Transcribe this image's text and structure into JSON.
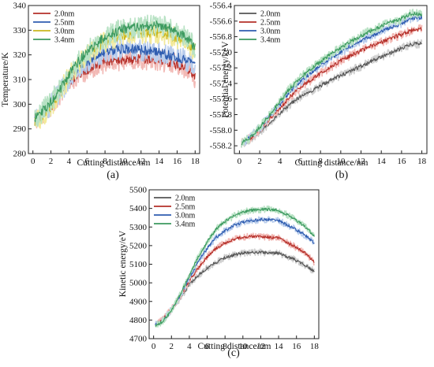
{
  "chart_data": [
    {
      "panel_label": "(a)",
      "type": "line",
      "xlabel": "Cutting distance/nm",
      "ylabel": "Temperature/K",
      "xlim": [
        -0.5,
        18.5
      ],
      "ylim": [
        280,
        340
      ],
      "xticks": [
        0,
        2,
        4,
        6,
        8,
        10,
        12,
        14,
        16,
        18
      ],
      "yticks": [
        280,
        290,
        300,
        310,
        320,
        330,
        340
      ],
      "legend_position": "top-left",
      "grid": false,
      "noise": 3.5,
      "series": [
        {
          "name": "2.0nm",
          "color": "#b5302a",
          "band": "#f2b9b5",
          "x": [
            0.2,
            1,
            2,
            3,
            4,
            5,
            6,
            7,
            8,
            9,
            10,
            11,
            12,
            13,
            14,
            15,
            16,
            17,
            18
          ],
          "y": [
            294,
            296,
            299,
            304,
            309,
            312,
            314,
            316,
            317,
            317.5,
            318,
            318,
            318.5,
            318,
            318,
            317,
            316,
            315,
            311
          ]
        },
        {
          "name": "2.5nm",
          "color": "#2f5db0",
          "band": "#b9cdec",
          "x": [
            0.2,
            1,
            2,
            3,
            4,
            5,
            6,
            7,
            8,
            9,
            10,
            11,
            12,
            13,
            14,
            15,
            16,
            17,
            18
          ],
          "y": [
            294,
            296,
            300,
            305,
            310,
            314,
            317,
            319.5,
            321,
            322,
            322.5,
            322.5,
            322,
            321.5,
            321,
            320,
            319,
            318,
            315
          ]
        },
        {
          "name": "3.0nm",
          "color": "#c9b71e",
          "band": "#f3ea9a",
          "x": [
            0.2,
            1,
            2,
            3,
            4,
            5,
            6,
            7,
            8,
            9,
            10,
            11,
            12,
            13,
            14,
            15,
            16,
            17,
            18
          ],
          "y": [
            293,
            295,
            299,
            305,
            311,
            316,
            320,
            323,
            325,
            327,
            328,
            328.5,
            329,
            329,
            329,
            328,
            327,
            325,
            321
          ]
        },
        {
          "name": "3.4nm",
          "color": "#3c9a5f",
          "band": "#b8e2c4",
          "x": [
            0.2,
            1,
            2,
            3,
            4,
            5,
            6,
            7,
            8,
            9,
            10,
            11,
            12,
            13,
            14,
            15,
            16,
            17,
            18
          ],
          "y": [
            294,
            297,
            301,
            306,
            312,
            317,
            321,
            324.5,
            327,
            329,
            330.5,
            331,
            331.5,
            332,
            332,
            331,
            329,
            327,
            323
          ]
        }
      ]
    },
    {
      "panel_label": "(b)",
      "type": "line",
      "xlabel": "Cutting distance/nm",
      "ylabel": "Potential energy/keV",
      "xlim": [
        -0.5,
        18.5
      ],
      "ylim": [
        -558.3,
        -556.4
      ],
      "xticks": [
        0,
        2,
        4,
        6,
        8,
        10,
        12,
        14,
        16,
        18
      ],
      "yticks": [
        -558.2,
        -558.0,
        -557.8,
        -557.6,
        -557.4,
        -557.2,
        -557.0,
        -556.8,
        -556.6,
        -556.4
      ],
      "ytick_labels": [
        "-558.2",
        "-558.0",
        "-557.8",
        "-557.6",
        "-557.4",
        "-557.2",
        "-557.0",
        "-556.8",
        "-556.6",
        "-556.4"
      ],
      "legend_position": "top-left",
      "grid": false,
      "noise": 0.045,
      "series": [
        {
          "name": "2.0nm",
          "color": "#555555",
          "band": "#cfcfcf",
          "x": [
            0.2,
            1,
            2,
            3,
            4,
            5,
            6,
            7,
            8,
            9,
            10,
            11,
            12,
            13,
            14,
            15,
            16,
            17,
            18
          ],
          "y": [
            -558.17,
            -558.13,
            -558.02,
            -557.9,
            -557.78,
            -557.67,
            -557.57,
            -557.5,
            -557.43,
            -557.36,
            -557.3,
            -557.24,
            -557.18,
            -557.12,
            -557.06,
            -557.0,
            -556.95,
            -556.9,
            -556.88
          ]
        },
        {
          "name": "2.5nm",
          "color": "#b5302a",
          "band": "#f2b9b5",
          "x": [
            0.2,
            1,
            2,
            3,
            4,
            5,
            6,
            7,
            8,
            9,
            10,
            11,
            12,
            13,
            14,
            15,
            16,
            17,
            18
          ],
          "y": [
            -558.16,
            -558.11,
            -557.99,
            -557.85,
            -557.72,
            -557.57,
            -557.45,
            -557.36,
            -557.27,
            -557.19,
            -557.11,
            -557.04,
            -556.98,
            -556.92,
            -556.87,
            -556.82,
            -556.77,
            -556.72,
            -556.7
          ]
        },
        {
          "name": "3.0nm",
          "color": "#2f5db0",
          "band": "#b9cdec",
          "x": [
            0.2,
            1,
            2,
            3,
            4,
            5,
            6,
            7,
            8,
            9,
            10,
            11,
            12,
            13,
            14,
            15,
            16,
            17,
            18
          ],
          "y": [
            -558.16,
            -558.1,
            -557.97,
            -557.82,
            -557.67,
            -557.5,
            -557.38,
            -557.27,
            -557.17,
            -557.08,
            -557.0,
            -556.92,
            -556.85,
            -556.79,
            -556.73,
            -556.68,
            -556.63,
            -556.57,
            -556.55
          ]
        },
        {
          "name": "3.4nm",
          "color": "#3c9a5f",
          "band": "#b8e2c4",
          "x": [
            0.2,
            1,
            2,
            3,
            4,
            5,
            6,
            7,
            8,
            9,
            10,
            11,
            12,
            13,
            14,
            15,
            16,
            17,
            18
          ],
          "y": [
            -558.17,
            -558.1,
            -557.96,
            -557.8,
            -557.63,
            -557.46,
            -557.33,
            -557.22,
            -557.12,
            -557.02,
            -556.94,
            -556.86,
            -556.79,
            -556.72,
            -556.66,
            -556.61,
            -556.57,
            -556.5,
            -556.52
          ]
        }
      ]
    },
    {
      "panel_label": "(c)",
      "type": "line",
      "xlabel": "Cutting distance/nm",
      "ylabel": "Kinetic energy/eV",
      "xlim": [
        -0.5,
        18.5
      ],
      "ylim": [
        4700,
        5500
      ],
      "xticks": [
        0,
        2,
        4,
        6,
        8,
        10,
        12,
        14,
        16,
        18
      ],
      "yticks": [
        4700,
        4800,
        4900,
        5000,
        5100,
        5200,
        5300,
        5400,
        5500
      ],
      "legend_position": "top-left",
      "grid": false,
      "noise": 14,
      "series": [
        {
          "name": "2.0nm",
          "color": "#555555",
          "band": "#cfcfcf",
          "x": [
            0.2,
            1,
            2,
            3,
            4,
            5,
            6,
            7,
            8,
            9,
            10,
            11,
            12,
            13,
            14,
            15,
            16,
            17,
            18
          ],
          "y": [
            4780,
            4800,
            4850,
            4920,
            4990,
            5040,
            5080,
            5110,
            5135,
            5150,
            5160,
            5165,
            5165,
            5160,
            5160,
            5140,
            5120,
            5095,
            5060
          ]
        },
        {
          "name": "2.5nm",
          "color": "#b5302a",
          "band": "#f2b9b5",
          "x": [
            0.2,
            1,
            2,
            3,
            4,
            5,
            6,
            7,
            8,
            9,
            10,
            11,
            12,
            13,
            14,
            15,
            16,
            17,
            18
          ],
          "y": [
            4780,
            4800,
            4860,
            4930,
            5010,
            5080,
            5140,
            5185,
            5215,
            5235,
            5245,
            5250,
            5250,
            5245,
            5240,
            5215,
            5190,
            5160,
            5110
          ]
        },
        {
          "name": "3.0nm",
          "color": "#2f5db0",
          "band": "#b9cdec",
          "x": [
            0.2,
            1,
            2,
            3,
            4,
            5,
            6,
            7,
            8,
            9,
            10,
            11,
            12,
            13,
            14,
            15,
            16,
            17,
            18
          ],
          "y": [
            4775,
            4795,
            4855,
            4935,
            5025,
            5115,
            5185,
            5245,
            5280,
            5310,
            5325,
            5335,
            5340,
            5340,
            5335,
            5310,
            5285,
            5255,
            5215
          ]
        },
        {
          "name": "3.4nm",
          "color": "#3c9a5f",
          "band": "#b8e2c4",
          "x": [
            0.2,
            1,
            2,
            3,
            4,
            5,
            6,
            7,
            8,
            9,
            10,
            11,
            12,
            13,
            14,
            15,
            16,
            17,
            18
          ],
          "y": [
            4770,
            4790,
            4850,
            4940,
            5040,
            5140,
            5220,
            5290,
            5330,
            5360,
            5380,
            5390,
            5395,
            5395,
            5390,
            5365,
            5335,
            5300,
            5250
          ]
        }
      ]
    }
  ]
}
